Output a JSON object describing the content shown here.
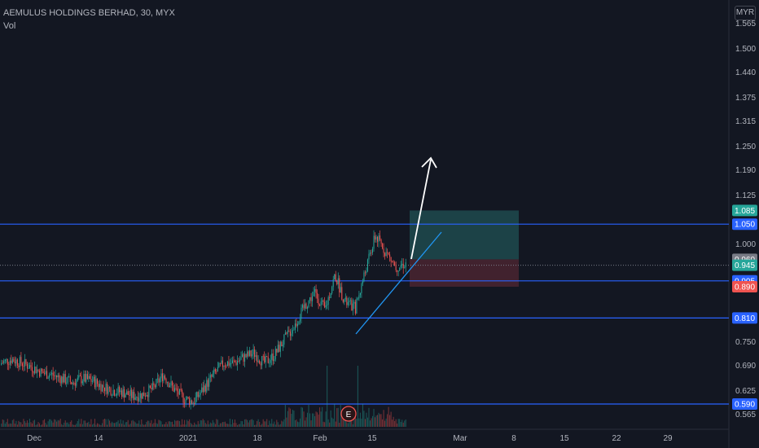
{
  "header": {
    "title": "AEMULUS HOLDINGS BERHAD, 30, MYX",
    "subtitle": "Vol"
  },
  "currency": "MYR",
  "earnings_marker": "E",
  "colors": {
    "background": "#131722",
    "up": "#26a69a",
    "down": "#ef5350",
    "hline": "#2962ff",
    "trendline": "#2196f3",
    "arrow": "#ffffff",
    "profit_zone": "#1f4a4e",
    "loss_zone": "#4a2530"
  },
  "chart_data": {
    "type": "candlestick",
    "title": "AEMULUS HOLDINGS BERHAD, 30, MYX",
    "price_axis": {
      "min": 0.55,
      "max": 1.58,
      "ticks": [
        "1.565",
        "1.500",
        "1.440",
        "1.375",
        "1.315",
        "1.250",
        "1.190",
        "1.125",
        "1.000",
        "0.750",
        "0.690",
        "0.625",
        "0.565"
      ]
    },
    "time_axis": {
      "ticks": [
        "Dec",
        "14",
        "2021",
        "18",
        "Feb",
        "15",
        "Mar",
        "8",
        "15",
        "22",
        "29"
      ]
    },
    "horizontal_lines": [
      1.05,
      0.905,
      0.81,
      0.59
    ],
    "price_badges": [
      {
        "label": "1.085",
        "color": "#26a69a"
      },
      {
        "label": "1.050",
        "color": "#2962ff"
      },
      {
        "label": "0.960",
        "color": "#787b86"
      },
      {
        "label": "0.945",
        "color": "#26a69a"
      },
      {
        "label": "0.905",
        "color": "#2962ff"
      },
      {
        "label": "0.890",
        "color": "#ef5350"
      },
      {
        "label": "0.810",
        "color": "#2962ff"
      },
      {
        "label": "0.590",
        "color": "#2962ff"
      }
    ],
    "position": {
      "entry": 0.96,
      "target": 1.085,
      "stop": 0.89
    },
    "price_path": [
      [
        0.69,
        0.7
      ],
      [
        0.7,
        0.71
      ],
      [
        0.69,
        0.7
      ],
      [
        0.68,
        0.69
      ],
      [
        0.66,
        0.68
      ],
      [
        0.67,
        0.66
      ],
      [
        0.66,
        0.65
      ],
      [
        0.64,
        0.65
      ],
      [
        0.65,
        0.66
      ],
      [
        0.66,
        0.64
      ],
      [
        0.64,
        0.63
      ],
      [
        0.63,
        0.62
      ],
      [
        0.62,
        0.62
      ],
      [
        0.61,
        0.61
      ],
      [
        0.61,
        0.62
      ],
      [
        0.63,
        0.63
      ],
      [
        0.66,
        0.67
      ],
      [
        0.64,
        0.62
      ],
      [
        0.61,
        0.6
      ],
      [
        0.6,
        0.59
      ],
      [
        0.62,
        0.64
      ],
      [
        0.66,
        0.67
      ],
      [
        0.69,
        0.7
      ],
      [
        0.7,
        0.69
      ],
      [
        0.7,
        0.72
      ],
      [
        0.73,
        0.71
      ],
      [
        0.7,
        0.69
      ],
      [
        0.71,
        0.72
      ],
      [
        0.74,
        0.77
      ],
      [
        0.78,
        0.8
      ],
      [
        0.82,
        0.86
      ],
      [
        0.88,
        0.87
      ],
      [
        0.82,
        0.84
      ],
      [
        0.93,
        0.91
      ],
      [
        0.87,
        0.83
      ],
      [
        0.82,
        0.85
      ],
      [
        0.9,
        0.96
      ],
      [
        1.01,
        1.03
      ],
      [
        0.99,
        0.97
      ],
      [
        0.95,
        0.93
      ],
      [
        0.94,
        0.96
      ]
    ]
  }
}
